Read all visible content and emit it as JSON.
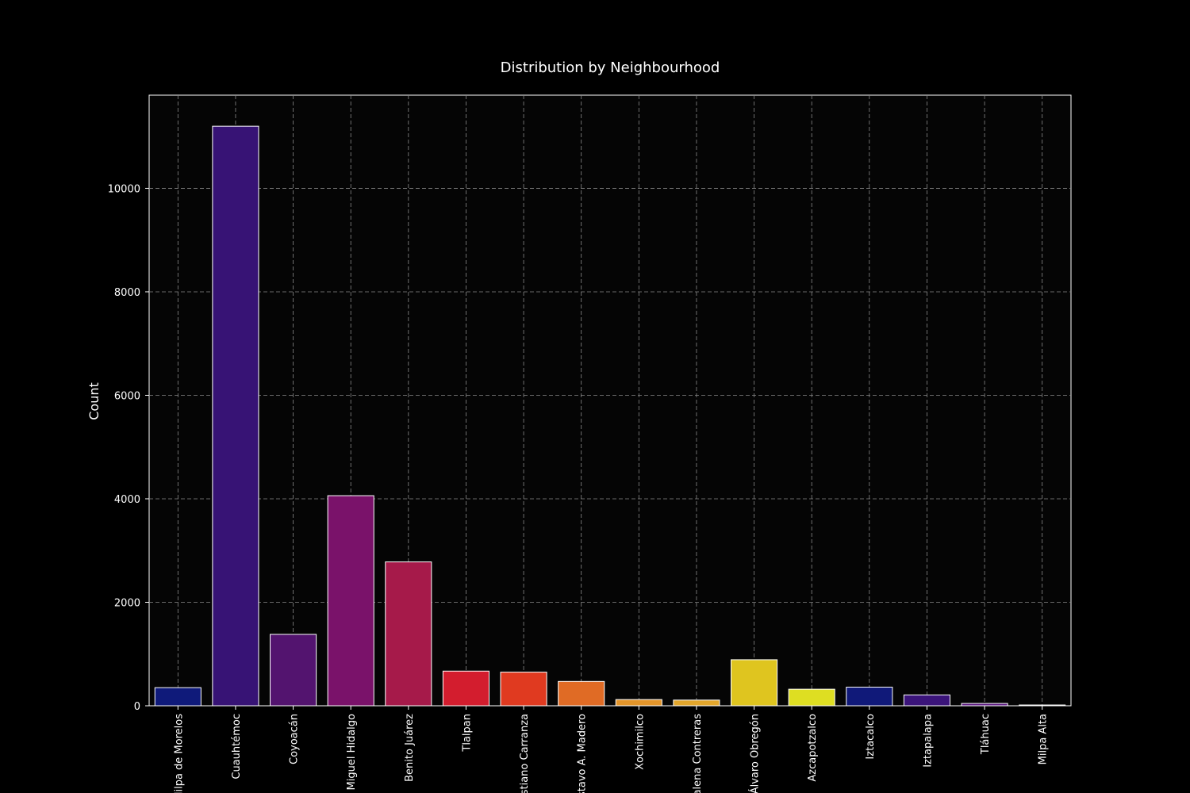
{
  "chart_data": {
    "type": "bar",
    "title": "Distribution by Neighbourhood",
    "xlabel": "",
    "ylabel": "Count",
    "categories": [
      "Milpa de Morelos",
      "Cuauhtémoc",
      "Coyoacán",
      "Miguel Hidalgo",
      "Benito Juárez",
      "Tlalpan",
      "Venustiano Carranza",
      "Gustavo A. Madero",
      "Xochimilco",
      "Magdalena Contreras",
      "Álvaro Obregón",
      "Azcapotzalco",
      "Iztacalco",
      "Iztapalapa",
      "Tláhuac",
      "Milpa Alta"
    ],
    "values": [
      350,
      11200,
      1380,
      4060,
      2780,
      670,
      650,
      470,
      120,
      110,
      890,
      320,
      360,
      210,
      45,
      15
    ],
    "colors": [
      "#0f1a7a",
      "#371375",
      "#53146f",
      "#7a126a",
      "#a61a4a",
      "#d31d2e",
      "#e03a20",
      "#e06b25",
      "#e3952a",
      "#e2a62c",
      "#dfc51f",
      "#dede22",
      "#101979",
      "#3b147a",
      "#5a1480",
      "#7a1480"
    ],
    "ylim": [
      0,
      11800
    ],
    "yticks": [
      0,
      2000,
      4000,
      6000,
      8000,
      10000
    ],
    "grid": true,
    "legend": "none",
    "background": "#000000",
    "text_color": "#ffffff"
  }
}
